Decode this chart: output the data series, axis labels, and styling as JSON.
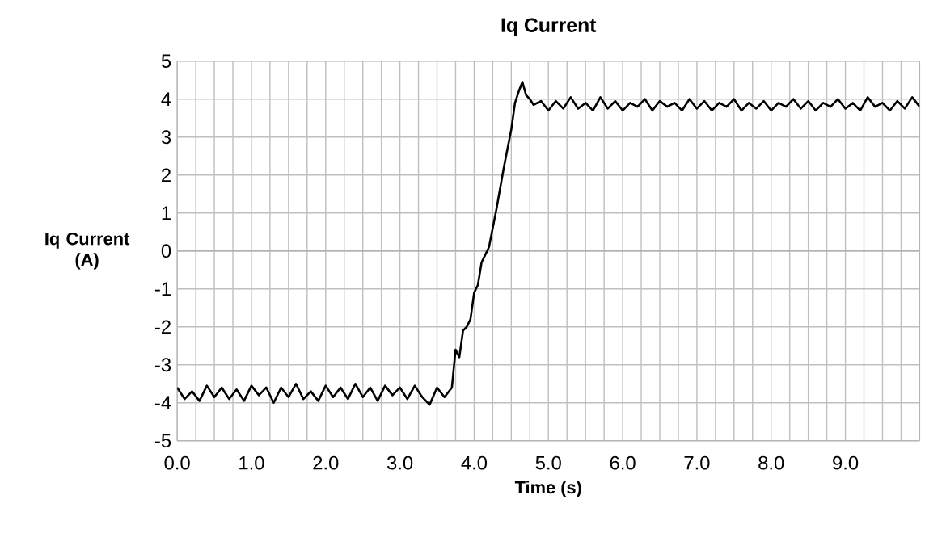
{
  "chart_data": {
    "type": "line",
    "title": "Iq Current",
    "xlabel": "Time  (s)",
    "ylabel": "Iq Current (A)",
    "xlim": [
      0,
      10
    ],
    "ylim": [
      -5,
      5
    ],
    "xticks": [
      {
        "value": 0,
        "label": "0.0"
      },
      {
        "value": 0.25,
        "label": null
      },
      {
        "value": 0.5,
        "label": null
      },
      {
        "value": 0.75,
        "label": null
      },
      {
        "value": 1,
        "label": "1.0"
      },
      {
        "value": 1.25,
        "label": null
      },
      {
        "value": 1.5,
        "label": null
      },
      {
        "value": 1.75,
        "label": null
      },
      {
        "value": 2,
        "label": "2.0"
      },
      {
        "value": 2.25,
        "label": null
      },
      {
        "value": 2.5,
        "label": null
      },
      {
        "value": 2.75,
        "label": null
      },
      {
        "value": 3,
        "label": "3.0"
      },
      {
        "value": 3.25,
        "label": null
      },
      {
        "value": 3.5,
        "label": null
      },
      {
        "value": 3.75,
        "label": null
      },
      {
        "value": 4,
        "label": "4.0"
      },
      {
        "value": 4.25,
        "label": null
      },
      {
        "value": 4.5,
        "label": null
      },
      {
        "value": 4.75,
        "label": null
      },
      {
        "value": 5,
        "label": "5.0"
      },
      {
        "value": 5.25,
        "label": null
      },
      {
        "value": 5.5,
        "label": null
      },
      {
        "value": 5.75,
        "label": null
      },
      {
        "value": 6,
        "label": "6.0"
      },
      {
        "value": 6.25,
        "label": null
      },
      {
        "value": 6.5,
        "label": null
      },
      {
        "value": 6.75,
        "label": null
      },
      {
        "value": 7,
        "label": "7.0"
      },
      {
        "value": 7.25,
        "label": null
      },
      {
        "value": 7.5,
        "label": null
      },
      {
        "value": 7.75,
        "label": null
      },
      {
        "value": 8,
        "label": "8.0"
      },
      {
        "value": 8.25,
        "label": null
      },
      {
        "value": 8.5,
        "label": null
      },
      {
        "value": 8.75,
        "label": null
      },
      {
        "value": 9,
        "label": "9.0"
      },
      {
        "value": 9.25,
        "label": null
      },
      {
        "value": 9.5,
        "label": null
      },
      {
        "value": 9.75,
        "label": null
      },
      {
        "value": 10,
        "label": null
      }
    ],
    "yticks": [
      -5,
      -4,
      -3,
      -2,
      -1,
      0,
      1,
      2,
      3,
      4,
      5
    ],
    "grid": true,
    "marker": "none",
    "line_style": "solid",
    "series": [
      {
        "color": "#000000",
        "x": [
          0,
          0.1,
          0.2,
          0.3,
          0.4,
          0.5,
          0.6,
          0.7,
          0.8,
          0.9,
          1.0,
          1.1,
          1.2,
          1.3,
          1.4,
          1.5,
          1.6,
          1.7,
          1.8,
          1.9,
          2.0,
          2.1,
          2.2,
          2.3,
          2.4,
          2.5,
          2.6,
          2.7,
          2.8,
          2.9,
          3.0,
          3.1,
          3.2,
          3.3,
          3.4,
          3.5,
          3.6,
          3.7,
          3.75,
          3.8,
          3.85,
          3.9,
          3.95,
          4.0,
          4.05,
          4.1,
          4.2,
          4.3,
          4.4,
          4.5,
          4.55,
          4.6,
          4.65,
          4.7,
          4.75,
          4.8,
          4.9,
          5.0,
          5.1,
          5.2,
          5.3,
          5.4,
          5.5,
          5.6,
          5.7,
          5.8,
          5.9,
          6.0,
          6.1,
          6.2,
          6.3,
          6.4,
          6.5,
          6.6,
          6.7,
          6.8,
          6.9,
          7.0,
          7.1,
          7.2,
          7.3,
          7.4,
          7.5,
          7.6,
          7.7,
          7.8,
          7.9,
          8.0,
          8.1,
          8.2,
          8.3,
          8.4,
          8.5,
          8.6,
          8.7,
          8.8,
          8.9,
          9.0,
          9.1,
          9.2,
          9.3,
          9.4,
          9.5,
          9.6,
          9.7,
          9.8,
          9.9,
          10.0
        ],
        "values": [
          -3.6,
          -3.9,
          -3.7,
          -3.95,
          -3.55,
          -3.85,
          -3.6,
          -3.9,
          -3.65,
          -3.95,
          -3.55,
          -3.8,
          -3.6,
          -4.0,
          -3.6,
          -3.85,
          -3.5,
          -3.9,
          -3.7,
          -3.95,
          -3.55,
          -3.85,
          -3.6,
          -3.9,
          -3.5,
          -3.85,
          -3.6,
          -3.95,
          -3.55,
          -3.8,
          -3.6,
          -3.9,
          -3.55,
          -3.85,
          -4.05,
          -3.6,
          -3.85,
          -3.6,
          -2.6,
          -2.8,
          -2.1,
          -2.0,
          -1.8,
          -1.1,
          -0.9,
          -0.3,
          0.1,
          1.1,
          2.2,
          3.2,
          3.9,
          4.2,
          4.45,
          4.1,
          4.0,
          3.85,
          3.95,
          3.7,
          3.95,
          3.75,
          4.05,
          3.75,
          3.9,
          3.7,
          4.05,
          3.75,
          3.95,
          3.7,
          3.9,
          3.8,
          4.0,
          3.7,
          3.95,
          3.8,
          3.9,
          3.7,
          4.0,
          3.75,
          3.95,
          3.7,
          3.9,
          3.8,
          4.0,
          3.7,
          3.9,
          3.75,
          3.95,
          3.7,
          3.9,
          3.8,
          4.0,
          3.75,
          3.95,
          3.7,
          3.9,
          3.8,
          4.0,
          3.75,
          3.9,
          3.7,
          4.05,
          3.8,
          3.9,
          3.7,
          3.95,
          3.75,
          4.05,
          3.8
        ]
      }
    ]
  }
}
